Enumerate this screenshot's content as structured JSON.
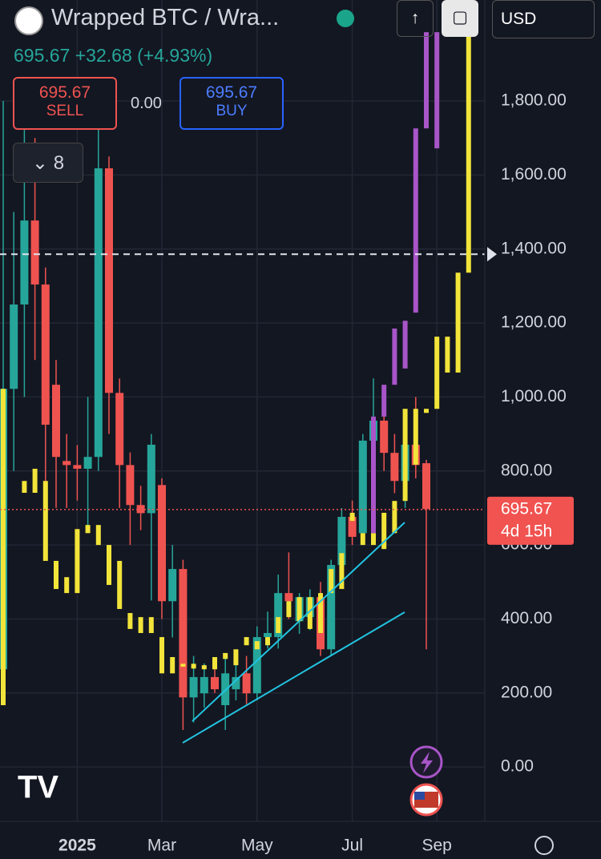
{
  "header": {
    "title": "Wrapped BTC / Wra...",
    "price": "695.67",
    "change": "+32.68",
    "change_pct": "(+4.93%)",
    "sell_price": "695.67",
    "sell": "SELL",
    "spread": "0.00",
    "buy_price": "695.67",
    "buy": "BUY",
    "interval_count": "8",
    "currency": "USD"
  },
  "chart_data": {
    "type": "candlestick",
    "categories": [
      null,
      null,
      null,
      null,
      null,
      null,
      null,
      "2025",
      null,
      null,
      null,
      null,
      null,
      null,
      null,
      "Mar",
      null,
      null,
      null,
      null,
      null,
      null,
      null,
      null,
      "May",
      null,
      null,
      null,
      null,
      null,
      null,
      null,
      null,
      "Jul",
      null,
      null,
      null,
      null,
      null,
      null,
      null,
      "Sep",
      null,
      null,
      null,
      null
    ],
    "series": [
      {
        "up_color": "#26a69a",
        "down_color": "#ef5350",
        "open": [
          264,
          1022,
          1250,
          1477,
          1304,
          1033,
          827,
          816,
          806,
          838,
          1618,
          1011,
          816,
          708,
          686,
          762,
          448,
          535,
          188,
          199,
          243,
          167,
          210,
          253,
          199,
          351,
          351,
          470,
          394,
          405,
          459,
          318,
          546,
          676,
          632,
          882,
          936,
          849,
          773,
          871,
          821
        ],
        "high": [
          1800,
          1500,
          1800,
          1700,
          1350,
          1100,
          900,
          870,
          1000,
          1750,
          1650,
          1050,
          850,
          760,
          900,
          780,
          600,
          560,
          300,
          280,
          280,
          300,
          290,
          300,
          380,
          420,
          520,
          580,
          470,
          480,
          500,
          560,
          700,
          720,
          900,
          1050,
          1000,
          900,
          900,
          1000,
          830
        ],
        "low": [
          200,
          800,
          1000,
          1100,
          700,
          700,
          700,
          720,
          650,
          800,
          900,
          700,
          600,
          640,
          450,
          400,
          350,
          100,
          120,
          160,
          200,
          100,
          180,
          170,
          180,
          320,
          320,
          400,
          360,
          370,
          300,
          300,
          500,
          600,
          600,
          850,
          800,
          740,
          700,
          780,
          318
        ],
        "close": [
          1022,
          1250,
          1477,
          1304,
          925,
          838,
          816,
          806,
          838,
          1618,
          1011,
          816,
          708,
          686,
          871,
          448,
          535,
          188,
          243,
          243,
          210,
          253,
          243,
          199,
          351,
          362,
          470,
          448,
          459,
          459,
          318,
          546,
          676,
          622,
          882,
          936,
          849,
          773,
          871,
          816,
          697
        ]
      },
      {
        "color": "#f2e43a",
        "open": [
          167,
          null,
          741,
          741,
          557,
          481,
          470,
          470,
          632,
          600,
          492,
          427,
          373,
          362,
          362,
          253,
          253,
          271,
          266,
          264,
          264,
          292,
          275,
          329,
          318,
          329,
          362,
          405,
          394,
          373,
          362,
          470,
          481,
          665,
          600,
          600,
          589,
          632,
          719,
          817,
          957,
          968,
          1066,
          1066,
          1336
        ],
        "close": [
          1022,
          null,
          773,
          806,
          773,
          557,
          513,
          643,
          654,
          654,
          600,
          557,
          416,
          405,
          405,
          351,
          297,
          279,
          279,
          275,
          297,
          308,
          318,
          351,
          340,
          351,
          405,
          448,
          459,
          459,
          470,
          535,
          578,
          687,
          632,
          632,
          687,
          719,
          968,
          968,
          968,
          1163,
          1163,
          1336,
          1986
        ]
      },
      {
        "color": "#a855c8",
        "open": [
          null,
          null,
          null,
          null,
          null,
          null,
          null,
          null,
          null,
          null,
          null,
          null,
          null,
          null,
          null,
          null,
          null,
          null,
          null,
          null,
          null,
          null,
          null,
          null,
          null,
          null,
          null,
          null,
          null,
          null,
          null,
          null,
          null,
          null,
          null,
          632,
          947,
          1033,
          1077,
          1228,
          1726,
          1986
        ],
        "close": [
          null,
          null,
          null,
          null,
          null,
          null,
          null,
          null,
          null,
          null,
          null,
          null,
          null,
          null,
          null,
          null,
          null,
          null,
          null,
          null,
          null,
          null,
          null,
          null,
          null,
          null,
          null,
          null,
          null,
          null,
          null,
          null,
          null,
          null,
          null,
          947,
          1033,
          1185,
          1206,
          1726,
          1986,
          1672
        ]
      }
    ],
    "ylim": [
      -147,
      2073
    ],
    "yticks": [
      {
        "value": 0,
        "label": "0.00"
      },
      {
        "value": 200,
        "label": "200.00"
      },
      {
        "value": 400,
        "label": "400.00"
      },
      {
        "value": 600,
        "label": "600.00"
      },
      {
        "value": 800,
        "label": "800.00"
      },
      {
        "value": 1000,
        "label": "1,000.00"
      },
      {
        "value": 1200,
        "label": "1,200.00"
      },
      {
        "value": 1400,
        "label": "1,400.00"
      },
      {
        "value": 1600,
        "label": "1,600.00"
      },
      {
        "value": 1800,
        "label": "1,800.00"
      }
    ],
    "grid": true,
    "last_price": 695.67,
    "countdown": "4d 15h",
    "hline": 1386
  }
}
